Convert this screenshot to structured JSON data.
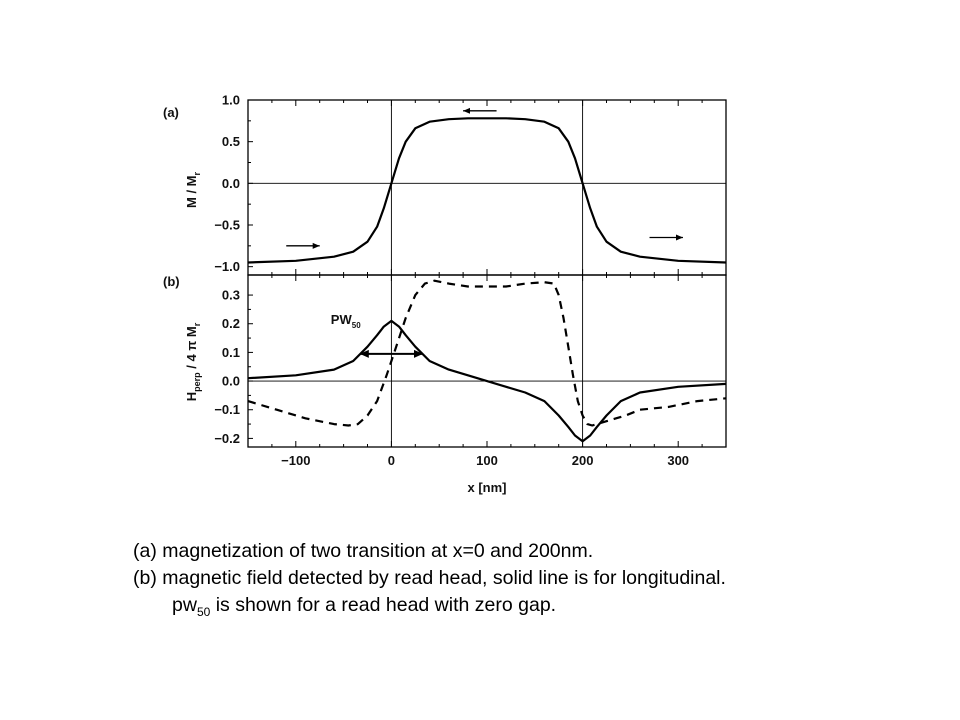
{
  "chart_data": [
    {
      "panel": "(a)",
      "type": "line",
      "ylabel": "M / Mr",
      "xlim": [
        -150,
        350
      ],
      "ylim": [
        -1.1,
        1.0
      ],
      "xticks": [
        -100,
        0,
        100,
        200,
        300
      ],
      "yticks": [
        -1.0,
        -0.5,
        0.0,
        0.5,
        1.0
      ],
      "ytick_labels": [
        "−1.0",
        "−0.5",
        "0.0",
        "0.5",
        "1.0"
      ],
      "series": [
        {
          "style": "solid",
          "x": [
            -150,
            -100,
            -60,
            -40,
            -25,
            -15,
            -8,
            0,
            8,
            15,
            25,
            40,
            60,
            80,
            100,
            120,
            140,
            160,
            175,
            185,
            192,
            200,
            208,
            215,
            225,
            240,
            260,
            300,
            350
          ],
          "y": [
            -0.95,
            -0.93,
            -0.88,
            -0.82,
            -0.7,
            -0.52,
            -0.3,
            0.0,
            0.3,
            0.5,
            0.66,
            0.74,
            0.77,
            0.78,
            0.78,
            0.78,
            0.77,
            0.74,
            0.66,
            0.5,
            0.3,
            0.0,
            -0.3,
            -0.52,
            -0.7,
            -0.82,
            -0.88,
            -0.93,
            -0.95
          ]
        }
      ],
      "arrows": [
        {
          "direction": "right",
          "x": [
            -110,
            -75
          ],
          "y": -0.75
        },
        {
          "direction": "left",
          "x": [
            110,
            75
          ],
          "y": 0.87
        },
        {
          "direction": "right",
          "x": [
            270,
            305
          ],
          "y": -0.65
        }
      ]
    },
    {
      "panel": "(b)",
      "type": "line",
      "ylabel": "Hperp / 4 π Mr",
      "xlabel": "x [nm]",
      "xlim": [
        -150,
        350
      ],
      "ylim": [
        -0.23,
        0.37
      ],
      "xticks": [
        -100,
        0,
        100,
        200,
        300
      ],
      "xtick_labels": [
        "−100",
        "0",
        "100",
        "200",
        "300"
      ],
      "yticks": [
        -0.2,
        -0.1,
        0.0,
        0.1,
        0.2,
        0.3
      ],
      "ytick_labels": [
        "−0.2",
        "−0.1",
        "0.0",
        "0.1",
        "0.2",
        "0.3"
      ],
      "annotation": {
        "text": "PW",
        "sub": "50",
        "x": -32,
        "y": 0.22,
        "span_x": [
          -32,
          32
        ],
        "span_y": 0.095
      },
      "series": [
        {
          "style": "solid",
          "description_key": "longitudinal",
          "x": [
            -150,
            -100,
            -60,
            -40,
            -25,
            -15,
            -8,
            0,
            8,
            15,
            25,
            40,
            60,
            80,
            100,
            120,
            140,
            160,
            175,
            185,
            192,
            200,
            208,
            215,
            225,
            240,
            260,
            300,
            350
          ],
          "y": [
            0.01,
            0.02,
            0.04,
            0.07,
            0.12,
            0.16,
            0.19,
            0.21,
            0.19,
            0.16,
            0.12,
            0.07,
            0.04,
            0.02,
            0.0,
            -0.02,
            -0.04,
            -0.07,
            -0.12,
            -0.16,
            -0.19,
            -0.21,
            -0.19,
            -0.16,
            -0.12,
            -0.07,
            -0.04,
            -0.02,
            -0.01
          ]
        },
        {
          "style": "dashed",
          "x": [
            -150,
            -120,
            -90,
            -60,
            -45,
            -35,
            -25,
            -15,
            -5,
            5,
            15,
            25,
            35,
            45,
            60,
            80,
            100,
            120,
            140,
            160,
            170,
            175,
            180,
            185,
            190,
            195,
            200,
            205,
            210,
            215,
            225,
            235,
            245,
            260,
            290,
            320,
            350
          ],
          "y": [
            -0.07,
            -0.1,
            -0.13,
            -0.15,
            -0.155,
            -0.15,
            -0.12,
            -0.07,
            0.02,
            0.12,
            0.22,
            0.3,
            0.34,
            0.35,
            0.34,
            0.33,
            0.33,
            0.33,
            0.34,
            0.345,
            0.34,
            0.3,
            0.22,
            0.12,
            0.02,
            -0.07,
            -0.12,
            -0.15,
            -0.155,
            -0.15,
            -0.14,
            -0.13,
            -0.12,
            -0.1,
            -0.09,
            -0.07,
            -0.06
          ]
        }
      ]
    }
  ],
  "caption": {
    "line1": "(a) magnetization of two transition at x=0 and 200nm.",
    "line2": "(b) magnetic field detected by read head, solid line is for longitudinal.",
    "line3_prefix": "pw",
    "line3_sub": "50",
    "line3_rest": " is shown for a read head with zero gap."
  }
}
